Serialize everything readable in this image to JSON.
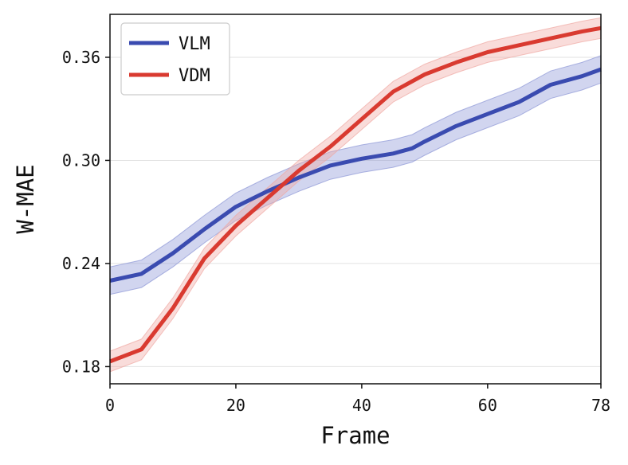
{
  "chart_data": {
    "type": "line",
    "title": "",
    "xlabel": "Frame",
    "ylabel": "W-MAE",
    "xlim": [
      0,
      78
    ],
    "ylim": [
      0.17,
      0.385
    ],
    "xticks": [
      0,
      20,
      40,
      60,
      78
    ],
    "yticks": [
      0.18,
      0.24,
      0.3,
      0.36
    ],
    "xtick_labels": [
      "0",
      "20",
      "40",
      "60",
      "78"
    ],
    "ytick_labels": [
      "0.18",
      "0.24",
      "0.30",
      "0.36"
    ],
    "grid": "horizontal",
    "legend_position": "top-left",
    "series": [
      {
        "name": "VLM",
        "color": "#3a4bb0",
        "band_color": "#8b95d6",
        "band_width": 0.008,
        "x": [
          0,
          5,
          10,
          15,
          20,
          25,
          30,
          35,
          40,
          45,
          48,
          50,
          55,
          60,
          65,
          70,
          75,
          78
        ],
        "y": [
          0.23,
          0.234,
          0.246,
          0.26,
          0.273,
          0.282,
          0.29,
          0.297,
          0.301,
          0.304,
          0.307,
          0.311,
          0.32,
          0.327,
          0.334,
          0.344,
          0.349,
          0.353
        ]
      },
      {
        "name": "VDM",
        "color": "#d93a30",
        "band_color": "#f0a8a3",
        "band_width": 0.006,
        "x": [
          0,
          5,
          10,
          15,
          20,
          25,
          30,
          35,
          40,
          45,
          50,
          55,
          60,
          65,
          70,
          75,
          78
        ],
        "y": [
          0.183,
          0.19,
          0.214,
          0.243,
          0.262,
          0.278,
          0.294,
          0.308,
          0.324,
          0.34,
          0.35,
          0.357,
          0.363,
          0.367,
          0.371,
          0.375,
          0.377
        ]
      }
    ]
  }
}
